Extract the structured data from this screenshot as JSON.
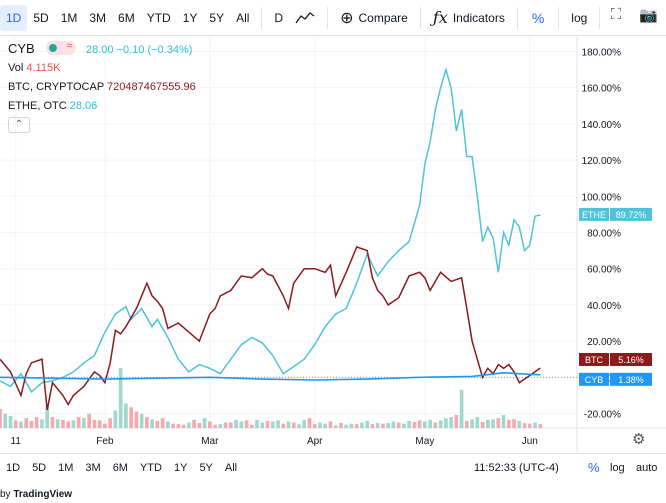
{
  "toolbar": {
    "intervals": [
      "1D",
      "5D",
      "1M",
      "3M",
      "6M",
      "YTD",
      "1Y",
      "5Y",
      "All"
    ],
    "active_interval": "1D",
    "timeframe": "D",
    "compare_label": "Compare",
    "indicators_label": "Indicators",
    "percent_label": "%",
    "log_label": "log"
  },
  "legend": {
    "symbol": "CYB",
    "badge_glyph": "≈",
    "main_values": "28.00  −0.10 (−0.34%)",
    "vol_label": "Vol",
    "vol_value": "4.115K",
    "btc_label": "BTC, CRYPTOCAP",
    "btc_value": "720487467555.96",
    "ethe_label": "ETHE, OTC",
    "ethe_value": "28.06",
    "collapse_glyph": "⌃"
  },
  "bottombar": {
    "ranges": [
      "1D",
      "5D",
      "1M",
      "3M",
      "6M",
      "YTD",
      "1Y",
      "5Y",
      "All"
    ],
    "clock": "11:52:33 (UTC-4)",
    "percent_label": "%",
    "log_label": "log",
    "auto_label": "auto"
  },
  "branding": {
    "prefix": "by ",
    "name": "TradingView"
  },
  "colors": {
    "btc": "#8b1a1a",
    "ethe": "#4fc3d9",
    "cyb": "#2196f3",
    "accent": "#2962ff",
    "vol_up": "#9fd8cd",
    "vol_down": "#f4a9ad"
  },
  "icons": {
    "toolbar_right": [
      "fullscreen-icon",
      "camera-icon"
    ],
    "settings": "gear-icon"
  },
  "chart_data": {
    "type": "line",
    "yunit": "%",
    "yticks": [
      "180.00%",
      "160.00%",
      "140.00%",
      "120.00%",
      "100.00%",
      "80.00%",
      "60.00%",
      "40.00%",
      "20.00%",
      "0.00%",
      "-20.00%"
    ],
    "yticks_values": [
      180,
      160,
      140,
      120,
      100,
      80,
      60,
      40,
      20,
      0,
      -20
    ],
    "ylim": [
      -28,
      188
    ],
    "xticks": [
      "11",
      "Feb",
      "Mar",
      "Apr",
      "May",
      "Jun"
    ],
    "xticks_pos": [
      3,
      20,
      40,
      60,
      81,
      101
    ],
    "xlim": [
      0,
      110
    ],
    "series": [
      {
        "name": "ETHE",
        "label": "ETHE",
        "last_label": "89.72%",
        "color": "#4fc3d9",
        "values": [
          [
            0,
            -2
          ],
          [
            2,
            -5
          ],
          [
            4,
            2
          ],
          [
            6,
            -8
          ],
          [
            8,
            -3
          ],
          [
            10,
            -2
          ],
          [
            12,
            0
          ],
          [
            14,
            3
          ],
          [
            16,
            8
          ],
          [
            18,
            12
          ],
          [
            20,
            25
          ],
          [
            22,
            35
          ],
          [
            24,
            39
          ],
          [
            25,
            32
          ],
          [
            27,
            38
          ],
          [
            29,
            28
          ],
          [
            30,
            32
          ],
          [
            32,
            22
          ],
          [
            34,
            10
          ],
          [
            36,
            3
          ],
          [
            38,
            7
          ],
          [
            40,
            5
          ],
          [
            42,
            2
          ],
          [
            44,
            10
          ],
          [
            46,
            18
          ],
          [
            48,
            22
          ],
          [
            50,
            19
          ],
          [
            52,
            12
          ],
          [
            54,
            2
          ],
          [
            56,
            6
          ],
          [
            58,
            10
          ],
          [
            60,
            18
          ],
          [
            62,
            28
          ],
          [
            64,
            35
          ],
          [
            66,
            38
          ],
          [
            68,
            52
          ],
          [
            70,
            68
          ],
          [
            72,
            56
          ],
          [
            74,
            64
          ],
          [
            76,
            70
          ],
          [
            78,
            75
          ],
          [
            80,
            95
          ],
          [
            81,
            118
          ],
          [
            82,
            130
          ],
          [
            83,
            148
          ],
          [
            84,
            160
          ],
          [
            85,
            170
          ],
          [
            86,
            160
          ],
          [
            87,
            136
          ],
          [
            88,
            148
          ],
          [
            89,
            122
          ],
          [
            90,
            122
          ],
          [
            91,
            100
          ],
          [
            92,
            75
          ],
          [
            93,
            83
          ],
          [
            94,
            77
          ],
          [
            95,
            58
          ],
          [
            96,
            80
          ],
          [
            97,
            73
          ],
          [
            98,
            87
          ],
          [
            99,
            83
          ],
          [
            100,
            70
          ],
          [
            101,
            73
          ],
          [
            102,
            89
          ],
          [
            103,
            89.7
          ]
        ]
      },
      {
        "name": "BTC",
        "label": "BTC",
        "last_label": "5.16%",
        "color": "#8b1a1a",
        "values": [
          [
            0,
            10
          ],
          [
            2,
            3
          ],
          [
            4,
            -10
          ],
          [
            5,
            2
          ],
          [
            6,
            8
          ],
          [
            8,
            10
          ],
          [
            9,
            -18
          ],
          [
            10,
            -3
          ],
          [
            12,
            -10
          ],
          [
            13,
            -15
          ],
          [
            14,
            -10
          ],
          [
            16,
            -5
          ],
          [
            18,
            3
          ],
          [
            19,
            1
          ],
          [
            20,
            -3
          ],
          [
            21,
            8
          ],
          [
            22,
            26
          ],
          [
            23,
            24
          ],
          [
            24,
            28
          ],
          [
            26,
            38
          ],
          [
            28,
            52
          ],
          [
            29,
            45
          ],
          [
            30,
            42
          ],
          [
            31,
            38
          ],
          [
            32,
            27
          ],
          [
            34,
            30
          ],
          [
            36,
            25
          ],
          [
            38,
            20
          ],
          [
            40,
            35
          ],
          [
            41,
            38
          ],
          [
            42,
            45
          ],
          [
            44,
            48
          ],
          [
            46,
            56
          ],
          [
            48,
            55
          ],
          [
            50,
            60
          ],
          [
            51,
            57
          ],
          [
            52,
            56
          ],
          [
            54,
            45
          ],
          [
            55,
            38
          ],
          [
            56,
            52
          ],
          [
            58,
            60
          ],
          [
            60,
            60
          ],
          [
            62,
            58
          ],
          [
            63,
            62
          ],
          [
            64,
            45
          ],
          [
            66,
            58
          ],
          [
            68,
            72
          ],
          [
            70,
            70
          ],
          [
            71,
            55
          ],
          [
            72,
            48
          ],
          [
            73,
            45
          ],
          [
            74,
            40
          ],
          [
            76,
            44
          ],
          [
            78,
            56
          ],
          [
            80,
            58
          ],
          [
            81,
            55
          ],
          [
            82,
            48
          ],
          [
            84,
            58
          ],
          [
            86,
            53
          ],
          [
            88,
            55
          ],
          [
            89,
            38
          ],
          [
            90,
            20
          ],
          [
            91,
            10
          ],
          [
            92,
            0
          ],
          [
            93,
            5
          ],
          [
            94,
            2
          ],
          [
            95,
            7
          ],
          [
            96,
            5
          ],
          [
            97,
            7
          ],
          [
            98,
            3
          ],
          [
            99,
            -3
          ],
          [
            100,
            -1
          ],
          [
            101,
            1
          ],
          [
            103,
            5.16
          ]
        ]
      },
      {
        "name": "CYB",
        "label": "CYB",
        "last_label": "1.38%",
        "color": "#2196f3",
        "values": [
          [
            0,
            0
          ],
          [
            10,
            -0.5
          ],
          [
            20,
            -1
          ],
          [
            30,
            -0.5
          ],
          [
            40,
            0
          ],
          [
            50,
            -1
          ],
          [
            60,
            -1.5
          ],
          [
            70,
            -1
          ],
          [
            80,
            0
          ],
          [
            90,
            0.5
          ],
          [
            96,
            2.5
          ],
          [
            100,
            1.8
          ],
          [
            103,
            1.38
          ]
        ]
      }
    ],
    "volume": {
      "unit": "shares",
      "up_color": "#9fd8cd",
      "down_color": "#f4a9ad",
      "values": [
        [
          0,
          3.5,
          0
        ],
        [
          1,
          2.6,
          1
        ],
        [
          2,
          2.2,
          1
        ],
        [
          3,
          1.4,
          0
        ],
        [
          4,
          1.2,
          1
        ],
        [
          5,
          1.8,
          0
        ],
        [
          6,
          1.3,
          0
        ],
        [
          7,
          2.0,
          0
        ],
        [
          8,
          1.6,
          1
        ],
        [
          9,
          4.0,
          1
        ],
        [
          10,
          2.0,
          0
        ],
        [
          11,
          1.6,
          1
        ],
        [
          12,
          1.5,
          0
        ],
        [
          13,
          1.2,
          0
        ],
        [
          14,
          1.4,
          1
        ],
        [
          15,
          2.0,
          0
        ],
        [
          16,
          1.8,
          1
        ],
        [
          17,
          2.6,
          0
        ],
        [
          18,
          1.5,
          0
        ],
        [
          19,
          1.4,
          0
        ],
        [
          20,
          0.8,
          0
        ],
        [
          21,
          1.8,
          0
        ],
        [
          22,
          3.2,
          1
        ],
        [
          23,
          11.0,
          1
        ],
        [
          24,
          4.5,
          1
        ],
        [
          25,
          3.8,
          0
        ],
        [
          26,
          3.0,
          0
        ],
        [
          27,
          2.6,
          1
        ],
        [
          28,
          2.0,
          0
        ],
        [
          29,
          1.6,
          1
        ],
        [
          30,
          1.3,
          0
        ],
        [
          31,
          1.8,
          0
        ],
        [
          32,
          1.2,
          1
        ],
        [
          33,
          0.8,
          0
        ],
        [
          34,
          0.7,
          0
        ],
        [
          35,
          0.6,
          0
        ],
        [
          36,
          1.0,
          1
        ],
        [
          37,
          1.5,
          0
        ],
        [
          38,
          0.9,
          0
        ],
        [
          39,
          1.8,
          1
        ],
        [
          40,
          1.2,
          0
        ],
        [
          41,
          0.6,
          0
        ],
        [
          42,
          0.7,
          1
        ],
        [
          43,
          1.0,
          0
        ],
        [
          44,
          1.0,
          0
        ],
        [
          45,
          1.5,
          1
        ],
        [
          46,
          1.2,
          1
        ],
        [
          47,
          1.4,
          0
        ],
        [
          48,
          0.6,
          0
        ],
        [
          49,
          1.5,
          1
        ],
        [
          50,
          1.0,
          1
        ],
        [
          51,
          1.3,
          0
        ],
        [
          52,
          1.2,
          1
        ],
        [
          53,
          1.4,
          1
        ],
        [
          54,
          0.8,
          0
        ],
        [
          55,
          1.2,
          1
        ],
        [
          56,
          1.0,
          0
        ],
        [
          57,
          0.7,
          1
        ],
        [
          58,
          1.5,
          1
        ],
        [
          59,
          1.8,
          0
        ],
        [
          60,
          0.7,
          0
        ],
        [
          61,
          1.0,
          1
        ],
        [
          62,
          0.8,
          1
        ],
        [
          63,
          1.2,
          0
        ],
        [
          64,
          0.5,
          1
        ],
        [
          65,
          0.9,
          0
        ],
        [
          66,
          0.6,
          1
        ],
        [
          67,
          0.8,
          1
        ],
        [
          68,
          0.7,
          0
        ],
        [
          69,
          1.0,
          1
        ],
        [
          70,
          1.3,
          1
        ],
        [
          71,
          0.7,
          0
        ],
        [
          72,
          0.9,
          1
        ],
        [
          73,
          0.8,
          0
        ],
        [
          74,
          0.9,
          1
        ],
        [
          75,
          1.2,
          1
        ],
        [
          76,
          1.0,
          0
        ],
        [
          77,
          0.8,
          1
        ],
        [
          78,
          1.3,
          1
        ],
        [
          79,
          1.1,
          0
        ],
        [
          80,
          1.4,
          0
        ],
        [
          81,
          1.2,
          1
        ],
        [
          82,
          1.5,
          1
        ],
        [
          83,
          1.0,
          0
        ],
        [
          84,
          1.4,
          1
        ],
        [
          85,
          1.8,
          1
        ],
        [
          86,
          2.0,
          1
        ],
        [
          87,
          2.4,
          0
        ],
        [
          88,
          1.7,
          1
        ],
        [
          89,
          1.3,
          0
        ],
        [
          90,
          1.6,
          1
        ],
        [
          91,
          2.0,
          1
        ],
        [
          92,
          1.1,
          0
        ],
        [
          93,
          1.5,
          1
        ],
        [
          94,
          1.6,
          1
        ],
        [
          95,
          1.8,
          0
        ],
        [
          96,
          2.4,
          1
        ],
        [
          97,
          1.5,
          0
        ],
        [
          98,
          1.6,
          0
        ],
        [
          99,
          1.3,
          1
        ],
        [
          100,
          0.9,
          0
        ],
        [
          101,
          0.8,
          0
        ],
        [
          102,
          1.0,
          1
        ],
        [
          103,
          0.7,
          0
        ],
        [
          88,
          7.0,
          1
        ]
      ]
    }
  }
}
